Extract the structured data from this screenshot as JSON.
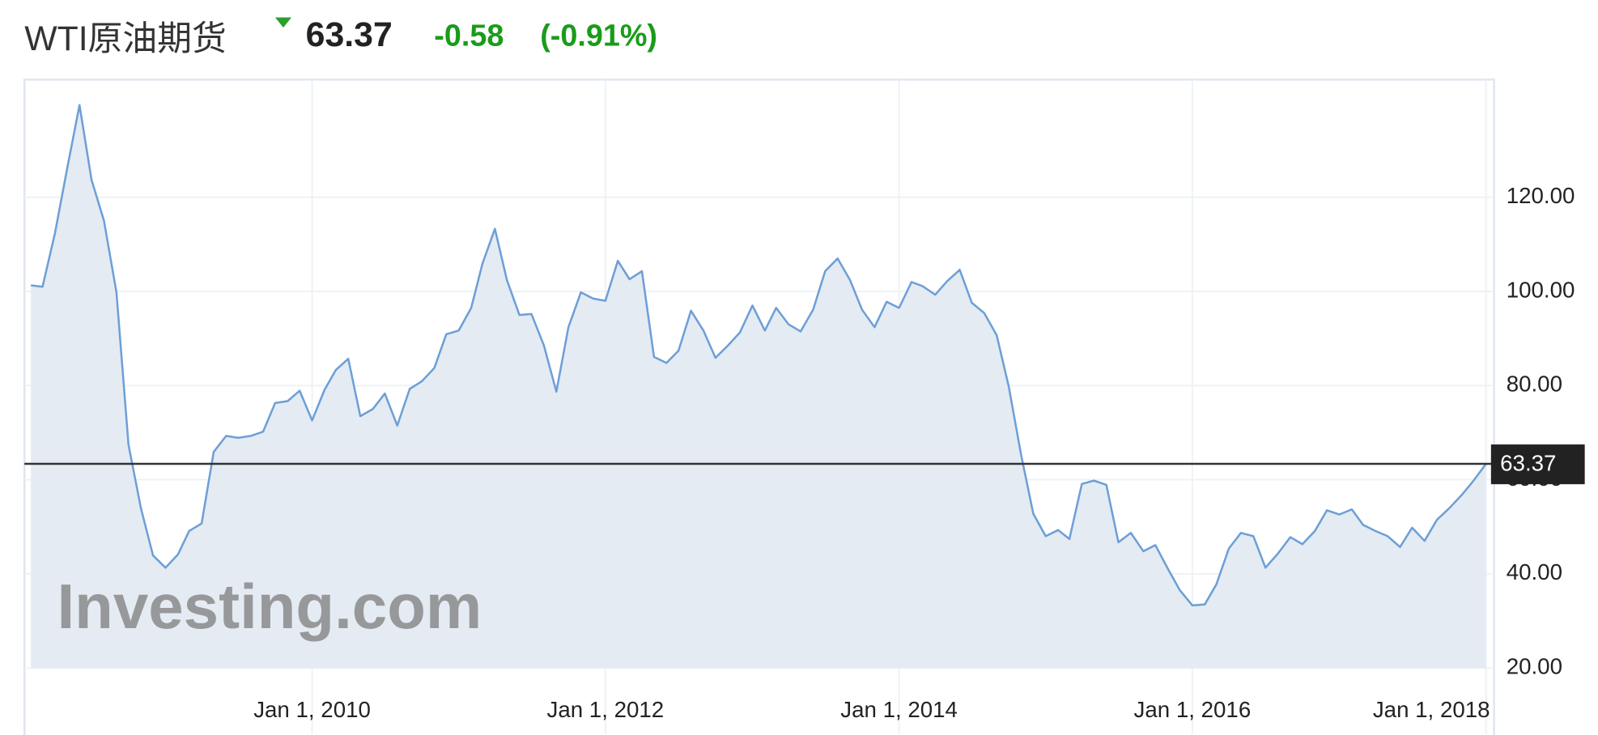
{
  "chart_data": {
    "type": "area",
    "title": "WTI原油期货",
    "last_price": 63.37,
    "change": "-0.58",
    "change_percent": "(-0.91%)",
    "watermark": "Investing.com",
    "line_color": "#6d9fd6",
    "fill_color": "#e4ebf3",
    "grid": true,
    "x": [
      "2008-02-01",
      "2008-03-01",
      "2008-04-01",
      "2008-05-01",
      "2008-06-01",
      "2008-07-01",
      "2008-08-01",
      "2008-09-01",
      "2008-10-01",
      "2008-11-01",
      "2008-12-01",
      "2009-01-01",
      "2009-02-01",
      "2009-03-01",
      "2009-04-01",
      "2009-05-01",
      "2009-06-01",
      "2009-07-01",
      "2009-08-01",
      "2009-09-01",
      "2009-10-01",
      "2009-11-01",
      "2009-12-01",
      "2010-01-01",
      "2010-02-01",
      "2010-03-01",
      "2010-04-01",
      "2010-05-01",
      "2010-06-01",
      "2010-07-01",
      "2010-08-01",
      "2010-09-01",
      "2010-10-01",
      "2010-11-01",
      "2010-12-01",
      "2011-01-01",
      "2011-02-01",
      "2011-03-01",
      "2011-04-01",
      "2011-05-01",
      "2011-06-01",
      "2011-07-01",
      "2011-08-01",
      "2011-09-01",
      "2011-10-01",
      "2011-11-01",
      "2011-12-01",
      "2012-01-01",
      "2012-02-01",
      "2012-03-01",
      "2012-04-01",
      "2012-05-01",
      "2012-06-01",
      "2012-07-01",
      "2012-08-01",
      "2012-09-01",
      "2012-10-01",
      "2012-11-01",
      "2012-12-01",
      "2013-01-01",
      "2013-02-01",
      "2013-03-01",
      "2013-04-01",
      "2013-05-01",
      "2013-06-01",
      "2013-07-01",
      "2013-08-01",
      "2013-09-01",
      "2013-10-01",
      "2013-11-01",
      "2013-12-01",
      "2014-01-01",
      "2014-02-01",
      "2014-03-01",
      "2014-04-01",
      "2014-05-01",
      "2014-06-01",
      "2014-07-01",
      "2014-08-01",
      "2014-09-01",
      "2014-10-01",
      "2014-11-01",
      "2014-12-01",
      "2015-01-01",
      "2015-02-01",
      "2015-03-01",
      "2015-04-01",
      "2015-05-01",
      "2015-06-01",
      "2015-07-01",
      "2015-08-01",
      "2015-09-01",
      "2015-10-01",
      "2015-11-01",
      "2015-12-01",
      "2016-01-01",
      "2016-02-01",
      "2016-03-01",
      "2016-04-01",
      "2016-05-01",
      "2016-06-01",
      "2016-07-01",
      "2016-08-01",
      "2016-09-01",
      "2016-10-01",
      "2016-11-01",
      "2016-12-01",
      "2017-01-01",
      "2017-02-01",
      "2017-03-01",
      "2017-04-01",
      "2017-05-01",
      "2017-06-01",
      "2017-07-01",
      "2017-08-01",
      "2017-09-01",
      "2017-10-01",
      "2017-11-01",
      "2017-12-01",
      "2018-01-01"
    ],
    "values": [
      101.3,
      101,
      112.4,
      126,
      139.6,
      123.7,
      115,
      99.8,
      67.4,
      53.9,
      43.9,
      41.3,
      44.1,
      49.1,
      50.7,
      65.9,
      69.3,
      68.9,
      69.3,
      70.2,
      76.3,
      76.7,
      78.9,
      72.6,
      79.1,
      83.3,
      85.7,
      73.5,
      75,
      78.3,
      71.5,
      79.3,
      80.9,
      83.7,
      90.9,
      91.7,
      96.5,
      105.9,
      113.3,
      102.4,
      95,
      95.2,
      88.5,
      78.7,
      92.4,
      99.8,
      98.5,
      98,
      106.5,
      102.6,
      104.3,
      86.1,
      84.8,
      87.4,
      95.9,
      91.7,
      85.9,
      88.5,
      91.3,
      97,
      91.7,
      96.5,
      93,
      91.5,
      96.1,
      104.3,
      107,
      102.4,
      96.1,
      92.4,
      97.8,
      96.5,
      102,
      101.1,
      99.3,
      102.2,
      104.6,
      97.6,
      95.4,
      90.7,
      79.8,
      65.2,
      52.8,
      48,
      49.3,
      47.4,
      59.1,
      59.8,
      58.9,
      46.7,
      48.7,
      44.8,
      46.1,
      41.1,
      36.5,
      33.3,
      33.5,
      37.8,
      45.4,
      48.7,
      48,
      41.3,
      44.3,
      47.8,
      46.3,
      49.1,
      53.5,
      52.6,
      53.7,
      50.4,
      49.1,
      48,
      45.7,
      49.8,
      47,
      51.5,
      53.9,
      56.7,
      59.8,
      63.37
    ],
    "xlim": [
      "2008-01-16",
      "2018-01-21"
    ],
    "xticks": [
      {
        "value": "2010-01-01",
        "label": "Jan 1, 2010"
      },
      {
        "value": "2012-01-01",
        "label": "Jan 1, 2012"
      },
      {
        "value": "2014-01-01",
        "label": "Jan 1, 2014"
      },
      {
        "value": "2016-01-01",
        "label": "Jan 1, 2016"
      },
      {
        "value": "2018-01-01",
        "label": "Jan 1, 2018"
      }
    ],
    "ylim": [
      6,
      145
    ],
    "yticks": [
      {
        "value": 20,
        "label": "20.00"
      },
      {
        "value": 40,
        "label": "40.00"
      },
      {
        "value": 60,
        "label": "60.00"
      },
      {
        "value": 80,
        "label": "80.00"
      },
      {
        "value": 100,
        "label": "100.00"
      },
      {
        "value": 120,
        "label": "120.00"
      }
    ]
  }
}
